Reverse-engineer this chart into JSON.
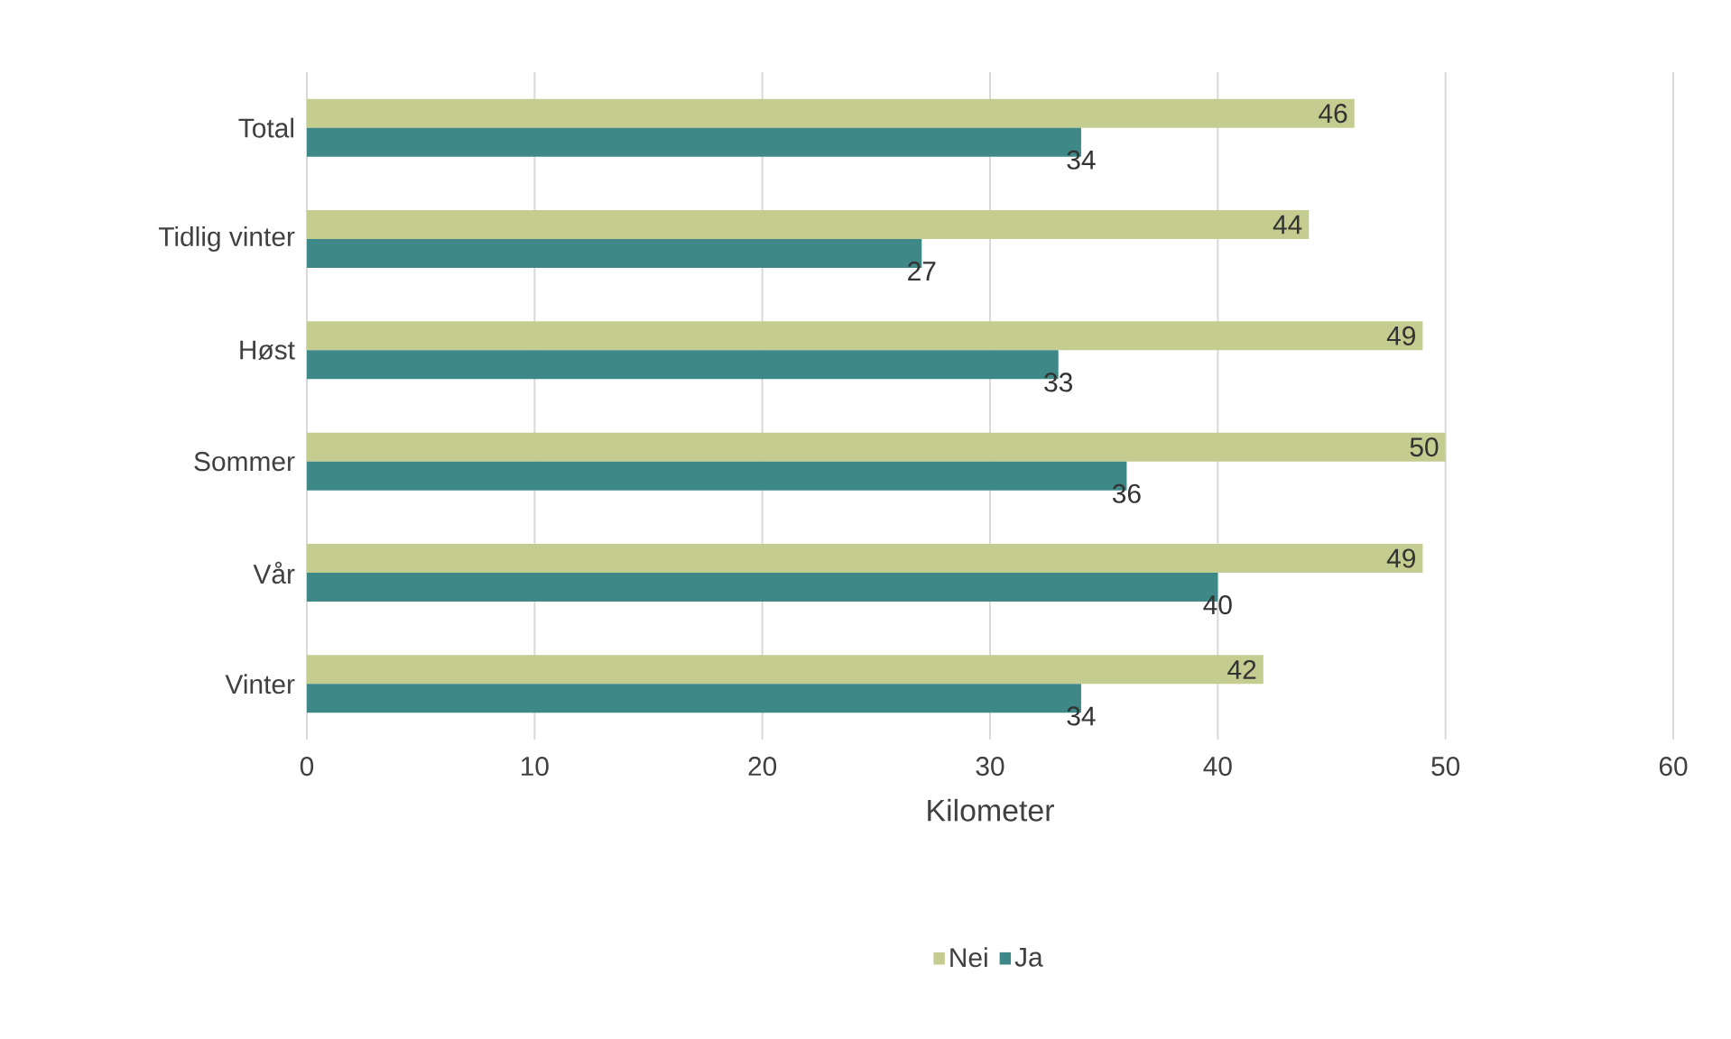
{
  "chart_data": {
    "type": "bar",
    "orientation": "horizontal",
    "categories": [
      "Total",
      "Tidlig vinter",
      "Høst",
      "Sommer",
      "Vår",
      "Vinter"
    ],
    "series": [
      {
        "name": "Nei",
        "color": "#c4cd8f",
        "values": [
          46,
          44,
          49,
          50,
          49,
          42
        ]
      },
      {
        "name": "Ja",
        "color": "#3e8888",
        "values": [
          34,
          27,
          33,
          36,
          40,
          34
        ]
      }
    ],
    "xlim": [
      0,
      60
    ],
    "xticks": [
      0,
      10,
      20,
      30,
      40,
      50,
      60
    ],
    "xlabel": "Kilometer",
    "grid": "x",
    "legend": "bottom",
    "data_labels": true
  }
}
